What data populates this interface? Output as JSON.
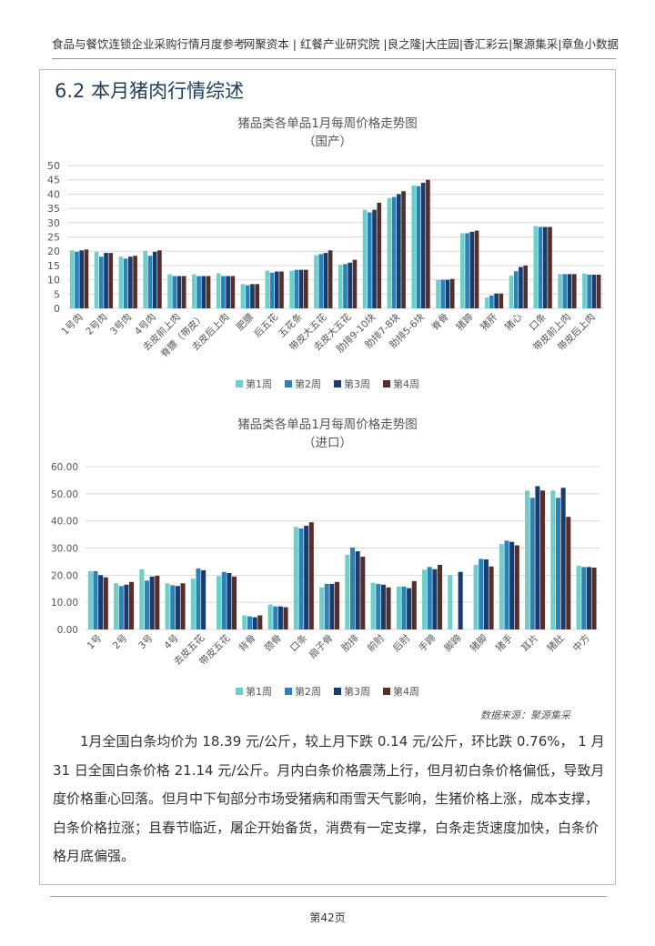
{
  "header": {
    "left": "食品与餐饮连锁企业采购行情月度参考",
    "right": "网聚资本 | 红餐产业研究院 |良之隆|大庄园|香汇彩云|聚源集采|章鱼小数据"
  },
  "section_title": "6.2 本月猪肉行情综述",
  "colors": {
    "week1": "#6ccfc8",
    "week2": "#2a82b8",
    "week3": "#163d6e",
    "week4": "#572d2a",
    "grid": "#d9d9d9"
  },
  "chart_data": [
    {
      "type": "bar",
      "title": "猪品类各单品1月每周价格走势图",
      "subtitle": "（国产）",
      "xlabel": "",
      "ylabel": "",
      "ylim": [
        0,
        50
      ],
      "yticks": [
        "0",
        "5",
        "10",
        "15",
        "20",
        "25",
        "30",
        "35",
        "40",
        "45",
        "50"
      ],
      "grid": true,
      "legend_position": "bottom",
      "categories": [
        "1号肉",
        "2号肉",
        "3号肉",
        "4号肉",
        "去皮前上肉",
        "脊膘（带皮）",
        "去皮后上肉",
        "肥膘",
        "后五花",
        "五花条",
        "带皮大五花",
        "去皮大五花",
        "肋排9-10块",
        "肋排7-8块",
        "肋排5-6块",
        "脊骨",
        "猪蹄",
        "猪肝",
        "猪心",
        "口条",
        "带皮前上肉",
        "带皮后上肉"
      ],
      "series": [
        {
          "name": "第1周",
          "values": [
            20.3,
            19.8,
            18.1,
            20.1,
            11.9,
            11.9,
            12.3,
            8.5,
            13.2,
            13.2,
            18.6,
            15.3,
            34.5,
            38.6,
            43.0,
            10.0,
            26.3,
            3.8,
            11.5,
            28.8,
            12.0,
            12.2
          ]
        },
        {
          "name": "第2周",
          "values": [
            19.8,
            18.1,
            17.4,
            18.4,
            11.3,
            11.3,
            11.3,
            8.1,
            12.5,
            13.5,
            19.0,
            15.5,
            33.6,
            39.0,
            42.8,
            10.0,
            26.3,
            4.5,
            13.0,
            28.5,
            12.0,
            11.8
          ]
        },
        {
          "name": "第3周",
          "values": [
            20.3,
            19.4,
            18.1,
            19.8,
            11.3,
            11.3,
            11.3,
            8.5,
            12.9,
            13.5,
            19.4,
            16.0,
            34.5,
            40.0,
            44.0,
            10.0,
            26.8,
            5.2,
            14.5,
            28.5,
            12.0,
            11.8
          ]
        },
        {
          "name": "第4周",
          "values": [
            20.6,
            19.4,
            18.4,
            20.3,
            11.3,
            11.3,
            11.3,
            8.5,
            12.9,
            13.5,
            20.3,
            17.0,
            37.0,
            41.0,
            45.0,
            10.3,
            27.2,
            5.2,
            15.0,
            28.5,
            12.0,
            11.8
          ]
        }
      ]
    },
    {
      "type": "bar",
      "title": "猪品类各单品1月每周价格走势图",
      "subtitle": "（进口）",
      "xlabel": "",
      "ylabel": "",
      "ylim": [
        0,
        60
      ],
      "yticks": [
        "0.00",
        "10.00",
        "20.00",
        "30.00",
        "40.00",
        "50.00",
        "60.00"
      ],
      "grid": true,
      "legend_position": "bottom",
      "categories": [
        "1号",
        "2号",
        "3号",
        "4号",
        "去皮五花",
        "带皮五花",
        "背骨",
        "颈骨",
        "口条",
        "扇子骨",
        "肋排",
        "前肘",
        "后肘",
        "手蹄",
        "脚蹄",
        "猪脚",
        "猪手",
        "耳片",
        "猪肚",
        "中方"
      ],
      "series": [
        {
          "name": "第1周",
          "values": [
            21.5,
            17.0,
            22.2,
            17.0,
            18.7,
            19.7,
            5.2,
            9.2,
            37.8,
            15.5,
            27.5,
            17.2,
            15.8,
            22.0,
            20.0,
            23.8,
            31.5,
            51.2,
            51.2,
            23.5
          ]
        },
        {
          "name": "第2周",
          "values": [
            21.5,
            16.0,
            18.0,
            16.3,
            22.5,
            21.2,
            4.8,
            8.5,
            37.2,
            16.8,
            30.2,
            16.8,
            15.8,
            23.0,
            0,
            26.0,
            32.7,
            48.5,
            48.5,
            23.0
          ]
        },
        {
          "name": "第3周",
          "values": [
            20.0,
            16.5,
            19.5,
            16.0,
            21.8,
            20.8,
            4.5,
            8.5,
            38.2,
            16.8,
            28.8,
            16.5,
            15.2,
            22.2,
            21.2,
            25.8,
            32.3,
            52.8,
            52.2,
            23.0
          ]
        },
        {
          "name": "第4周",
          "values": [
            19.2,
            17.5,
            19.8,
            17.0,
            0,
            19.5,
            5.2,
            8.2,
            39.5,
            17.5,
            26.8,
            15.5,
            17.8,
            23.8,
            0,
            23.2,
            31.0,
            51.2,
            41.5,
            22.8
          ]
        }
      ]
    }
  ],
  "source": "数据来源：聚源集采",
  "paragraph": "1月全国白条均价为 18.39 元/公斤，较上月下跌 0.14 元/公斤，环比跌 0.76%， 1 月 31 日全国白条价格 21.14 元/公斤。月内白条价格震荡上行，但月初白条价格偏低，导致月度价格重心回落。但月中下旬部分市场受猪病和雨雪天气影响，生猪价格上涨，成本支撑，白条价格拉涨；且春节临近，屠企开始备货，消费有一定支撑，白条走货速度加快，白条价格月底偏强。",
  "page_number": "第42页"
}
